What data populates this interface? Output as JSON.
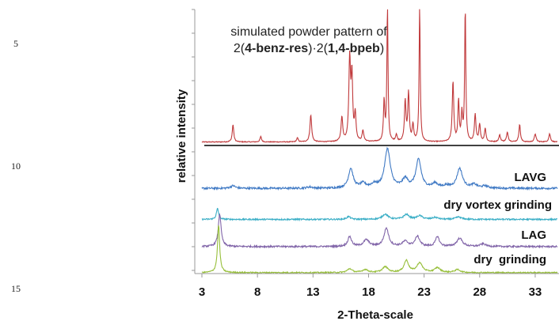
{
  "line_numbers": [
    "5",
    "10",
    "15"
  ],
  "chart_data": {
    "type": "line",
    "title_line1": "simulated powder pattern of",
    "title_line2_parts": [
      "2(",
      "4-benz-res",
      ")·2(",
      "1,4-bpeb",
      ")"
    ],
    "xlabel": "2-Theta-scale",
    "ylabel": "relative intensity",
    "x_ticks": [
      3,
      8,
      13,
      18,
      23,
      28,
      33
    ],
    "xlim": [
      3,
      35
    ],
    "colors": {
      "simulated": "#c0393b",
      "LAVG": "#3f79c4",
      "dry vortex grinding": "#3aaec6",
      "LAG": "#8064a8",
      "dry  grinding": "#97bf3a"
    },
    "series": [
      {
        "name": "simulated",
        "baseline": 0.02,
        "noise": 0.003,
        "peaks": [
          [
            5.8,
            0.13,
            0.08
          ],
          [
            8.3,
            0.04,
            0.08
          ],
          [
            11.6,
            0.03,
            0.08
          ],
          [
            12.8,
            0.2,
            0.09
          ],
          [
            15.6,
            0.18,
            0.09
          ],
          [
            16.3,
            0.61,
            0.09
          ],
          [
            16.5,
            0.47,
            0.08
          ],
          [
            16.8,
            0.2,
            0.08
          ],
          [
            17.5,
            0.08,
            0.09
          ],
          [
            19.4,
            0.3,
            0.07
          ],
          [
            19.7,
            1.0,
            0.06
          ],
          [
            20.5,
            0.05,
            0.08
          ],
          [
            21.3,
            0.3,
            0.08
          ],
          [
            21.6,
            0.36,
            0.08
          ],
          [
            22.0,
            0.12,
            0.08
          ],
          [
            22.6,
            1.0,
            0.06
          ],
          [
            25.6,
            0.45,
            0.08
          ],
          [
            26.1,
            0.3,
            0.07
          ],
          [
            26.4,
            0.2,
            0.07
          ],
          [
            26.7,
            1.0,
            0.06
          ],
          [
            27.6,
            0.2,
            0.08
          ],
          [
            28.0,
            0.13,
            0.08
          ],
          [
            28.5,
            0.1,
            0.08
          ],
          [
            29.8,
            0.05,
            0.09
          ],
          [
            30.5,
            0.07,
            0.09
          ],
          [
            31.6,
            0.13,
            0.08
          ],
          [
            33.0,
            0.06,
            0.09
          ],
          [
            34.3,
            0.06,
            0.09
          ]
        ]
      },
      {
        "name": "LAVG",
        "baseline": 0.05,
        "noise": 0.022,
        "peaks": [
          [
            5.8,
            0.06,
            0.25
          ],
          [
            12.7,
            0.03,
            0.3
          ],
          [
            16.4,
            0.45,
            0.25
          ],
          [
            17.5,
            0.1,
            0.3
          ],
          [
            18.5,
            0.08,
            0.3
          ],
          [
            19.7,
            0.9,
            0.3
          ],
          [
            21.3,
            0.2,
            0.3
          ],
          [
            22.5,
            0.65,
            0.28
          ],
          [
            24.0,
            0.1,
            0.3
          ],
          [
            25.0,
            0.05,
            0.3
          ],
          [
            26.2,
            0.45,
            0.3
          ],
          [
            27.5,
            0.08,
            0.3
          ],
          [
            28.5,
            0.05,
            0.3
          ]
        ]
      },
      {
        "name": "dry vortex grinding",
        "baseline": 0.05,
        "noise": 0.03,
        "peaks": [
          [
            4.4,
            0.45,
            0.12
          ],
          [
            16.2,
            0.12,
            0.2
          ],
          [
            19.5,
            0.22,
            0.3
          ],
          [
            21.4,
            0.2,
            0.3
          ],
          [
            22.6,
            0.15,
            0.3
          ],
          [
            24.0,
            0.08,
            0.3
          ],
          [
            26.1,
            0.1,
            0.3
          ]
        ]
      },
      {
        "name": "LAG",
        "baseline": 0.05,
        "noise": 0.025,
        "peaks": [
          [
            4.6,
            1.0,
            0.15
          ],
          [
            16.3,
            0.3,
            0.2
          ],
          [
            17.8,
            0.2,
            0.3
          ],
          [
            19.6,
            0.55,
            0.25
          ],
          [
            21.3,
            0.15,
            0.3
          ],
          [
            22.4,
            0.3,
            0.25
          ],
          [
            24.2,
            0.3,
            0.2
          ],
          [
            26.2,
            0.25,
            0.3
          ],
          [
            28.3,
            0.08,
            0.3
          ]
        ]
      },
      {
        "name": "dry  grinding",
        "baseline": 0.02,
        "noise": 0.012,
        "peaks": [
          [
            4.5,
            1.0,
            0.12
          ],
          [
            16.3,
            0.08,
            0.25
          ],
          [
            17.7,
            0.06,
            0.3
          ],
          [
            19.5,
            0.12,
            0.3
          ],
          [
            21.4,
            0.25,
            0.25
          ],
          [
            22.6,
            0.2,
            0.3
          ],
          [
            24.2,
            0.1,
            0.3
          ],
          [
            26.0,
            0.06,
            0.3
          ]
        ]
      }
    ],
    "labels": [
      "LAVG",
      "dry vortex grinding",
      "LAG",
      "dry  grinding"
    ]
  }
}
